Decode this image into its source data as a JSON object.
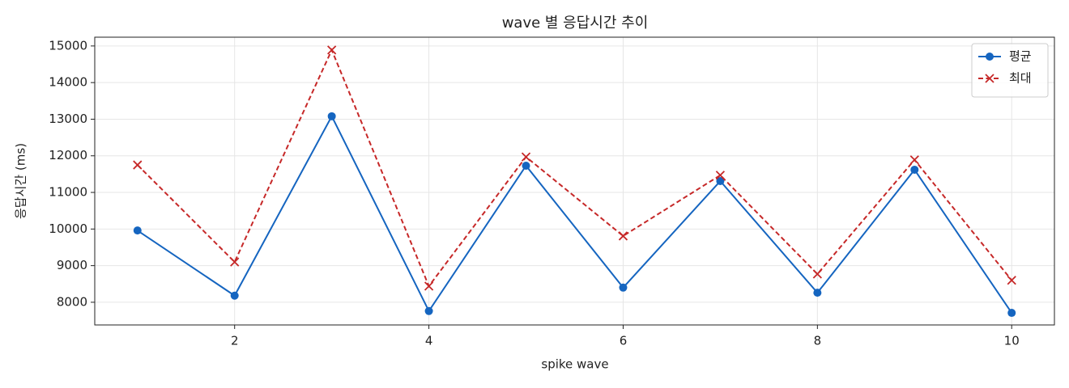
{
  "chart_data": {
    "type": "line",
    "title": "wave 별 응답시간 추이",
    "x_label": "spike wave",
    "y_label": "응답시간 (ms)",
    "x": [
      1,
      2,
      3,
      4,
      5,
      6,
      7,
      8,
      9,
      10
    ],
    "series": [
      {
        "name": "평균",
        "color": "#1565c0",
        "marker": "circle",
        "dash": false,
        "values": [
          9960,
          8180,
          13080,
          7760,
          11730,
          8400,
          11310,
          8260,
          11620,
          7710
        ]
      },
      {
        "name": "최대",
        "color": "#c62828",
        "marker": "x",
        "dash": true,
        "values": [
          11750,
          9100,
          14890,
          8440,
          11970,
          9810,
          11470,
          8770,
          11890,
          8600
        ]
      }
    ],
    "xlim": [
      0.56,
      10.44
    ],
    "ylim": [
      7380,
      15240
    ],
    "xticks": [
      2,
      4,
      6,
      8,
      10
    ],
    "yticks": [
      8000,
      9000,
      10000,
      11000,
      12000,
      13000,
      14000,
      15000
    ],
    "grid": true,
    "legend": "upper right"
  }
}
